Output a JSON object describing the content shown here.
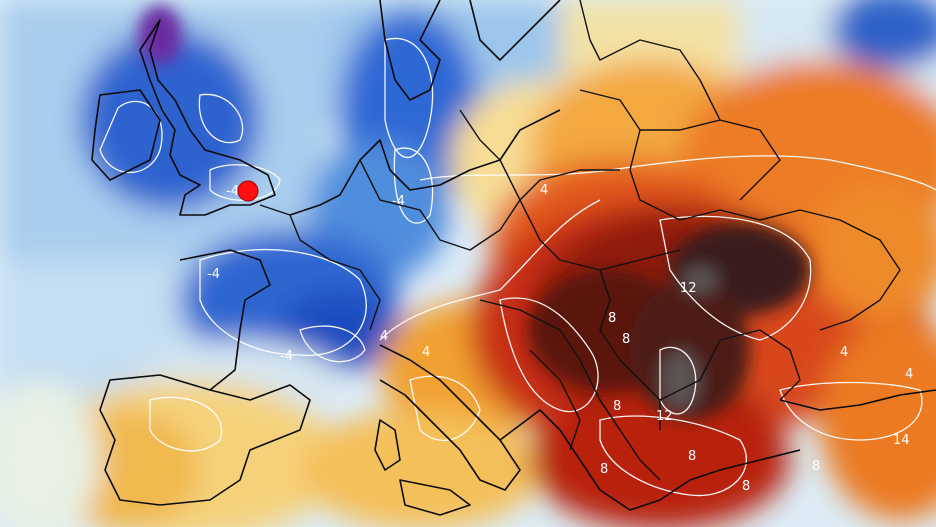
{
  "map": {
    "type": "temperature anomaly map",
    "region": "Europe",
    "colors": {
      "sea_background": "#dcecf6",
      "cold_strong": "#1a4fc4",
      "cold": "#3f7fd8",
      "cool": "#8dbbe8",
      "neutral": "#eef3ec",
      "warm_light": "#f6d98a",
      "warm": "#f3a23a",
      "hot": "#e2561b",
      "very_hot": "#b51d10",
      "extreme": "#5a1410",
      "peak": "#3a1e1c",
      "contour": "#ffffff",
      "borders": "#111111",
      "marker": "#ff1010"
    },
    "contour_labels": [
      {
        "id": "uk-minus4",
        "text": "-4"
      },
      {
        "id": "lowlands-minus4",
        "text": "-4"
      },
      {
        "id": "france-west-minus4",
        "text": "-4"
      },
      {
        "id": "france-south-minus4",
        "text": "-4"
      },
      {
        "id": "alps-4",
        "text": "4"
      },
      {
        "id": "italy-4",
        "text": "4"
      },
      {
        "id": "poland-4",
        "text": "4"
      },
      {
        "id": "hungary-8",
        "text": "8"
      },
      {
        "id": "slovakia-8",
        "text": "8"
      },
      {
        "id": "balkans-8",
        "text": "8"
      },
      {
        "id": "serbia-8",
        "text": "8"
      },
      {
        "id": "ukraine-12",
        "text": "12"
      },
      {
        "id": "romania-12",
        "text": "12"
      },
      {
        "id": "greece-8a",
        "text": "8"
      },
      {
        "id": "greece-8b",
        "text": "8"
      },
      {
        "id": "turkey-8",
        "text": "8"
      },
      {
        "id": "turkey-4",
        "text": "4"
      },
      {
        "id": "east-14",
        "text": "14"
      },
      {
        "id": "east-4",
        "text": "4"
      }
    ],
    "marker": {
      "icon": "location-dot-icon",
      "color": "#ff1010"
    }
  }
}
